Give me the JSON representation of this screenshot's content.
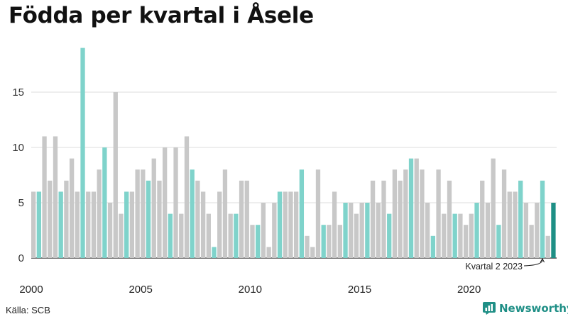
{
  "title": "Födda per kvartal i Åsele",
  "source": "Källa: SCB",
  "brand": "Newsworthy",
  "colors": {
    "gray": "#c8c8c8",
    "q2": "#7fd3cb",
    "latest": "#1e8f85",
    "brand": "#1f8f86"
  },
  "chart_data": {
    "type": "bar",
    "title": "Födda per kvartal i Åsele",
    "xlabel": "",
    "ylabel": "",
    "ylim": [
      0,
      20
    ],
    "yticks": [
      0,
      5,
      10,
      15
    ],
    "xticks": [
      "2000",
      "2005",
      "2010",
      "2015",
      "2020"
    ],
    "grid": true,
    "highlight": "Second quarter of each year in teal; latest value in dark teal",
    "annotation": "Kvartal 2 2023",
    "start_year": 2000,
    "values": [
      6,
      6,
      11,
      7,
      11,
      6,
      7,
      9,
      6,
      19,
      6,
      6,
      8,
      10,
      5,
      15,
      4,
      6,
      6,
      8,
      8,
      7,
      9,
      7,
      10,
      4,
      10,
      4,
      11,
      8,
      7,
      6,
      4,
      1,
      6,
      8,
      4,
      4,
      7,
      7,
      3,
      3,
      5,
      1,
      5,
      6,
      6,
      6,
      6,
      8,
      2,
      1,
      8,
      3,
      3,
      6,
      3,
      5,
      5,
      4,
      5,
      5,
      7,
      5,
      7,
      4,
      8,
      7,
      8,
      9,
      9,
      8,
      5,
      2,
      8,
      4,
      7,
      4,
      4,
      3,
      4,
      5,
      7,
      5,
      9,
      3,
      8,
      6,
      6,
      7,
      5,
      3,
      5,
      7,
      2,
      5
    ]
  }
}
